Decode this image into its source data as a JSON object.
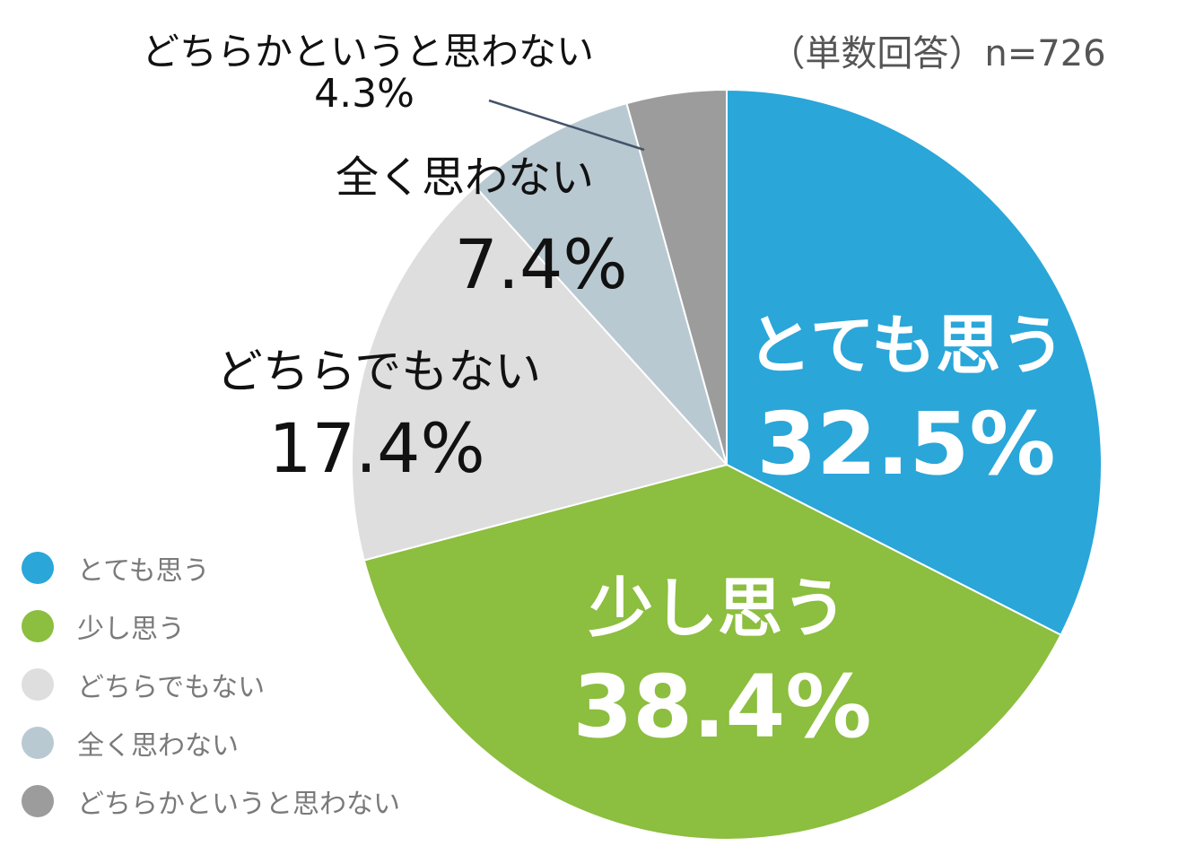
{
  "chart_data": {
    "type": "pie",
    "note": "（単数回答）n=726",
    "slices": [
      {
        "label": "とても思う",
        "value": 32.5,
        "value_label": "32.5%",
        "color": "#2aa6d9"
      },
      {
        "label": "少し思う",
        "value": 38.4,
        "value_label": "38.4%",
        "color": "#8cbe3f"
      },
      {
        "label": "どちらでもない",
        "value": 17.4,
        "value_label": "17.4%",
        "color": "#dedede"
      },
      {
        "label": "全く思わない",
        "value": 7.4,
        "value_label": "7.4%",
        "color": "#b9c9d2"
      },
      {
        "label": "どちらかというと思わない",
        "value": 4.3,
        "value_label": "4.3%",
        "color": "#9c9c9c"
      }
    ],
    "start": "top",
    "direction": "clockwise",
    "legend_position": "bottom-left"
  }
}
